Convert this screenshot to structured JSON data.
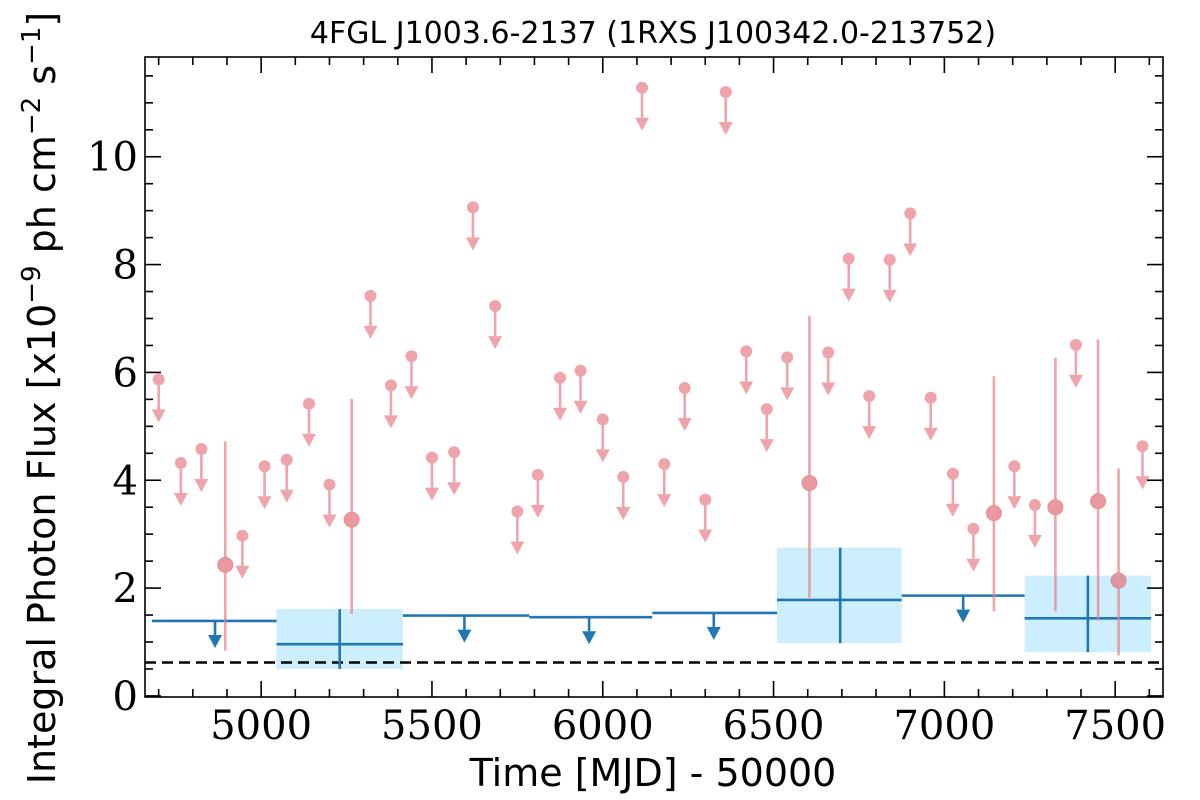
{
  "chart_data": {
    "type": "scatter",
    "title": "4FGL J1003.6-2137 (1RXS J100342.0-213752)",
    "xlabel": "Time [MJD] - 50000",
    "ylabel": "Integral Photon Flux [x10^-9 ph cm^-2 s^-1]",
    "xlim": [
      4660,
      7640
    ],
    "ylim": [
      -0.02,
      11.85
    ],
    "xticks": [
      5000,
      5500,
      6000,
      6500,
      7000,
      7500
    ],
    "yticks": [
      0,
      2,
      4,
      6,
      8,
      10
    ],
    "grid": false,
    "colors": {
      "short_bins": "#e8828a",
      "long_bins": "#1f77b4",
      "long_band": "#cdeefc",
      "baseline": "#000000"
    },
    "baseline_flux": 0.62,
    "series": [
      {
        "kind": "upper_limits",
        "x": [
          4700,
          4765,
          4825,
          4945,
          5010,
          5075,
          5140,
          5200,
          5320,
          5380,
          5440,
          5500,
          5565,
          5620,
          5685,
          5750,
          5810,
          5875,
          5935,
          6000,
          6060,
          6115,
          6180,
          6240,
          6300,
          6360,
          6420,
          6480,
          6540,
          6660,
          6720,
          6780,
          6840,
          6900,
          6960,
          7025,
          7085,
          7205,
          7265,
          7385,
          7580
        ],
        "y": [
          5.87,
          4.32,
          4.58,
          2.97,
          4.26,
          4.38,
          5.42,
          3.92,
          7.42,
          5.76,
          6.3,
          4.42,
          4.52,
          9.06,
          7.23,
          3.42,
          4.1,
          5.9,
          6.03,
          5.13,
          4.06,
          11.28,
          4.3,
          5.71,
          3.64,
          11.2,
          6.39,
          5.32,
          6.28,
          6.37,
          8.11,
          5.56,
          8.09,
          8.95,
          5.53,
          4.12,
          3.1,
          4.26,
          3.54,
          6.51,
          4.63
        ]
      },
      {
        "kind": "detections",
        "x": [
          4895,
          5265,
          6605,
          7145,
          7325,
          7450,
          7510
        ],
        "y": [
          2.43,
          3.27,
          3.95,
          3.39,
          3.5,
          3.61,
          2.14
        ],
        "yerr_low": [
          0.84,
          1.52,
          1.82,
          1.57,
          1.57,
          1.4,
          0.75
        ],
        "yerr_high": [
          4.72,
          5.51,
          7.05,
          5.93,
          6.27,
          6.61,
          4.22
        ]
      },
      {
        "kind": "long_upper_limits",
        "x_start": [
          4680,
          5415,
          5785,
          6145,
          6875
        ],
        "x_end": [
          5045,
          5785,
          6145,
          6510,
          7235
        ],
        "x_mark": [
          4865,
          5595,
          5960,
          6325,
          7055
        ],
        "y": [
          1.39,
          1.49,
          1.46,
          1.54,
          1.86
        ]
      },
      {
        "kind": "long_detections",
        "x": [
          5230,
          6695,
          7420
        ],
        "x_start": [
          5045,
          6510,
          7235
        ],
        "x_end": [
          5415,
          6875,
          7605
        ],
        "y": [
          0.96,
          1.78,
          1.44
        ],
        "yerr_low": [
          0.5,
          0.98,
          0.81
        ],
        "yerr_high": [
          1.61,
          2.75,
          2.23
        ]
      }
    ]
  }
}
